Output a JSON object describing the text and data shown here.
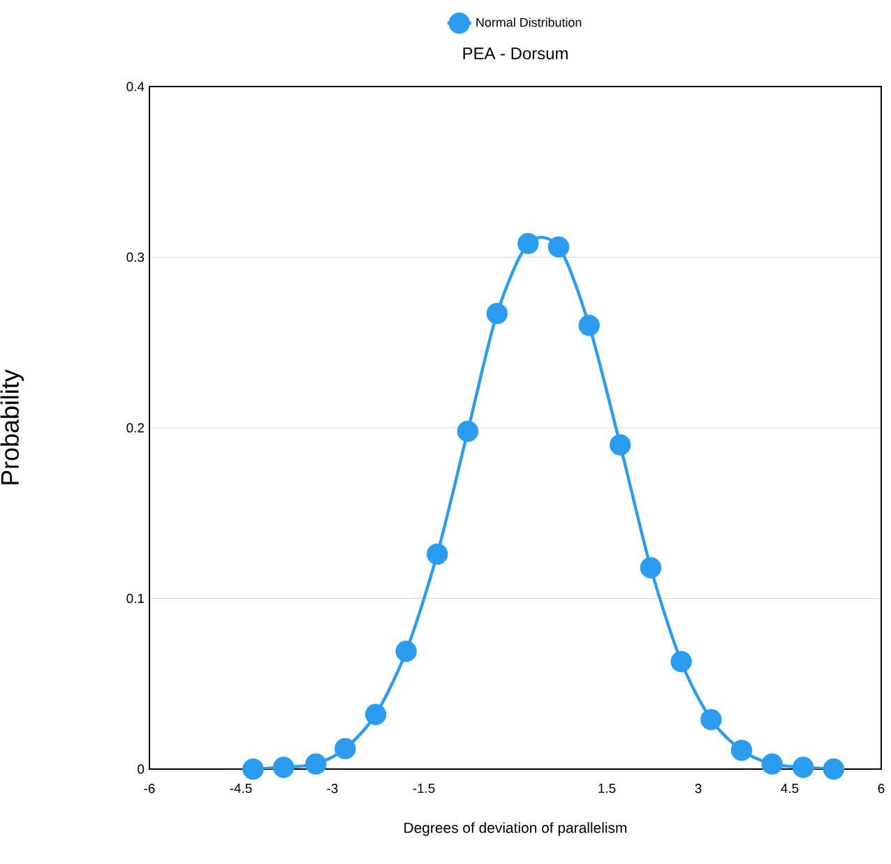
{
  "chart_data": {
    "type": "line",
    "title": "PEA - Dorsum",
    "xlabel": "Degrees of deviation of parallelism",
    "ylabel": "Probability",
    "series": [
      {
        "name": "Normal Distribution",
        "color": "#2b9cf0",
        "x": [
          -4.3,
          -3.8,
          -3.27,
          -2.79,
          -2.29,
          -1.79,
          -1.28,
          -0.78,
          -0.3,
          0.21,
          0.71,
          1.21,
          1.72,
          2.22,
          2.72,
          3.21,
          3.71,
          4.21,
          4.72,
          5.22
        ],
        "values": [
          0.0,
          0.001,
          0.003,
          0.012,
          0.032,
          0.069,
          0.126,
          0.198,
          0.267,
          0.308,
          0.306,
          0.26,
          0.19,
          0.118,
          0.063,
          0.029,
          0.011,
          0.003,
          0.001,
          0.0
        ]
      }
    ],
    "xlim": [
      -6,
      6
    ],
    "xticks": [
      -6,
      -4.5,
      -3,
      -1.5,
      1.5,
      3,
      4.5,
      6
    ],
    "ylim": [
      0,
      0.4
    ],
    "yticks": [
      0,
      0.1,
      0.2,
      0.3,
      0.4
    ],
    "grid": "y",
    "legend": "top",
    "marker": "circle",
    "line_style": "solid"
  }
}
